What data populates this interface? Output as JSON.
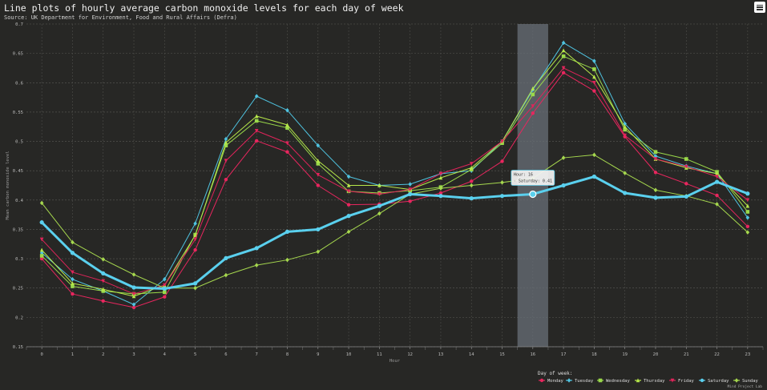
{
  "title": "Line plots of hourly average carbon monoxide levels for each day of week",
  "subtitle": "Source: UK Department for Environment, Food and Rural Affairs (Defra)",
  "credit": "Mind Project Lab",
  "tooltip": {
    "line1": "Hour: 16",
    "line2": "◦ Saturday: 0.41"
  },
  "chart_data": {
    "type": "line",
    "xlabel": "Hour",
    "ylabel": "Mean carbon monoxide level",
    "x": [
      0,
      1,
      2,
      3,
      4,
      5,
      6,
      7,
      8,
      9,
      10,
      11,
      12,
      13,
      14,
      15,
      16,
      17,
      18,
      19,
      20,
      21,
      22,
      23
    ],
    "ylim": [
      0.15,
      0.7
    ],
    "yticks": [
      0.15,
      0.2,
      0.25,
      0.3,
      0.35,
      0.4,
      0.45,
      0.5,
      0.55,
      0.6,
      0.65,
      0.7
    ],
    "ytick_labels": [
      "0.15",
      "0.2",
      "0.25",
      "0.3",
      "0.35",
      "0.4",
      "0.45",
      "0.5",
      "0.55",
      "0.6",
      "0.65",
      "0.7"
    ],
    "grid": true,
    "legend_title": "Day of week:",
    "legend_position": "bottom-right",
    "highlight_x": 16,
    "series": [
      {
        "name": "Monday",
        "color": "#e8265e",
        "marker": "circle",
        "values": [
          0.3,
          0.24,
          0.228,
          0.217,
          0.235,
          0.315,
          0.435,
          0.501,
          0.482,
          0.425,
          0.392,
          0.393,
          0.398,
          0.412,
          0.432,
          0.466,
          0.548,
          0.617,
          0.586,
          0.508,
          0.447,
          0.428,
          0.408,
          0.355
        ]
      },
      {
        "name": "Tuesday",
        "color": "#4fc3e0",
        "marker": "diamond",
        "values": [
          0.31,
          0.265,
          0.245,
          0.222,
          0.265,
          0.36,
          0.504,
          0.577,
          0.553,
          0.493,
          0.44,
          0.425,
          0.427,
          0.445,
          0.45,
          0.5,
          0.588,
          0.668,
          0.637,
          0.53,
          0.475,
          0.458,
          0.445,
          0.37
        ]
      },
      {
        "name": "Wednesday",
        "color": "#9ad94a",
        "marker": "square",
        "values": [
          0.305,
          0.253,
          0.245,
          0.24,
          0.243,
          0.341,
          0.493,
          0.535,
          0.523,
          0.462,
          0.415,
          0.412,
          0.416,
          0.422,
          0.452,
          0.497,
          0.58,
          0.645,
          0.623,
          0.52,
          0.482,
          0.47,
          0.448,
          0.38
        ]
      },
      {
        "name": "Thursday",
        "color": "#b7e84a",
        "marker": "triangle",
        "values": [
          0.315,
          0.258,
          0.248,
          0.236,
          0.255,
          0.34,
          0.498,
          0.543,
          0.528,
          0.467,
          0.425,
          0.425,
          0.418,
          0.438,
          0.455,
          0.5,
          0.59,
          0.655,
          0.61,
          0.525,
          0.47,
          0.455,
          0.445,
          0.39
        ]
      },
      {
        "name": "Friday",
        "color": "#e0245a",
        "marker": "triangle-down",
        "values": [
          0.333,
          0.277,
          0.262,
          0.24,
          0.255,
          0.333,
          0.467,
          0.518,
          0.497,
          0.443,
          0.415,
          0.41,
          0.418,
          0.445,
          0.462,
          0.5,
          0.56,
          0.625,
          0.6,
          0.51,
          0.47,
          0.457,
          0.44,
          0.4
        ]
      },
      {
        "name": "Saturday",
        "color": "#5ad0ee",
        "marker": "circle-big",
        "values": [
          0.362,
          0.31,
          0.275,
          0.251,
          0.249,
          0.258,
          0.301,
          0.318,
          0.346,
          0.35,
          0.373,
          0.39,
          0.41,
          0.407,
          0.403,
          0.407,
          0.41,
          0.425,
          0.44,
          0.412,
          0.404,
          0.406,
          0.431,
          0.411
        ]
      },
      {
        "name": "Sunday",
        "color": "#a6d84e",
        "marker": "diamond",
        "values": [
          0.395,
          0.328,
          0.299,
          0.273,
          0.25,
          0.25,
          0.272,
          0.289,
          0.298,
          0.312,
          0.346,
          0.377,
          0.41,
          0.42,
          0.425,
          0.43,
          0.437,
          0.472,
          0.477,
          0.446,
          0.417,
          0.407,
          0.393,
          0.345
        ]
      }
    ]
  }
}
